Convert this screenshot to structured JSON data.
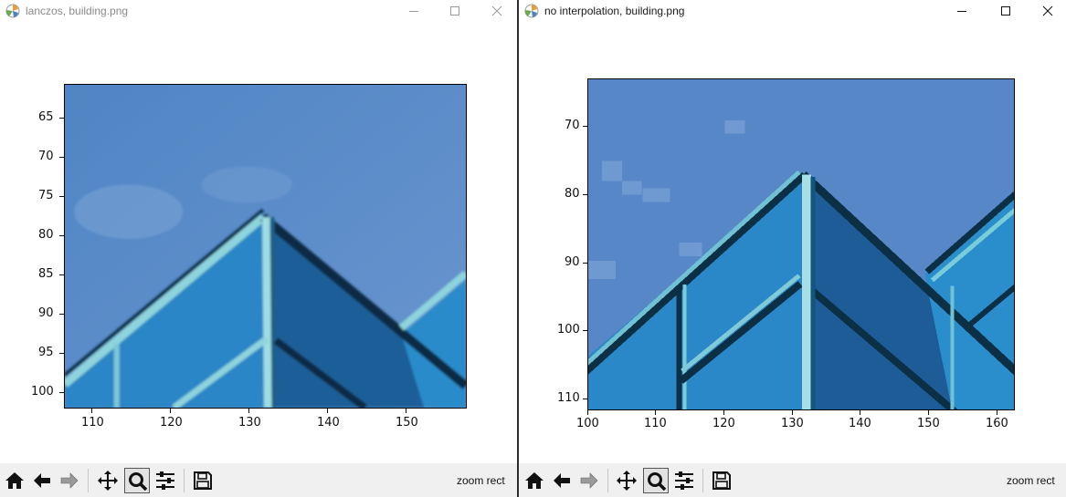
{
  "left_window": {
    "title": "lanczos, building.png",
    "y_ticks": [
      "65",
      "70",
      "75",
      "80",
      "85",
      "90",
      "95",
      "100"
    ],
    "x_ticks": [
      "110",
      "120",
      "130",
      "140",
      "150"
    ],
    "status": "zoom rect",
    "controls": [
      "minimize",
      "maximize",
      "close"
    ]
  },
  "right_window": {
    "title": "no interpolation, building.png",
    "y_ticks": [
      "70",
      "80",
      "90",
      "100",
      "110"
    ],
    "x_ticks": [
      "100",
      "110",
      "120",
      "130",
      "140",
      "150",
      "160"
    ],
    "status": "zoom rect",
    "controls": [
      "minimize",
      "maximize",
      "close"
    ]
  },
  "toolbar_tools": [
    "home-icon",
    "back-arrow-icon",
    "forward-arrow-icon",
    "pan-icon",
    "zoom-icon",
    "configure-subplots-icon",
    "save-icon"
  ],
  "active_tool": "zoom-icon",
  "colors": {
    "sky": "#5b88c8",
    "glass": "#2a7fc0",
    "dark_glass": "#1e4f86",
    "frame_dark": "#0b2e45",
    "frame_light": "#8fd3dc"
  }
}
